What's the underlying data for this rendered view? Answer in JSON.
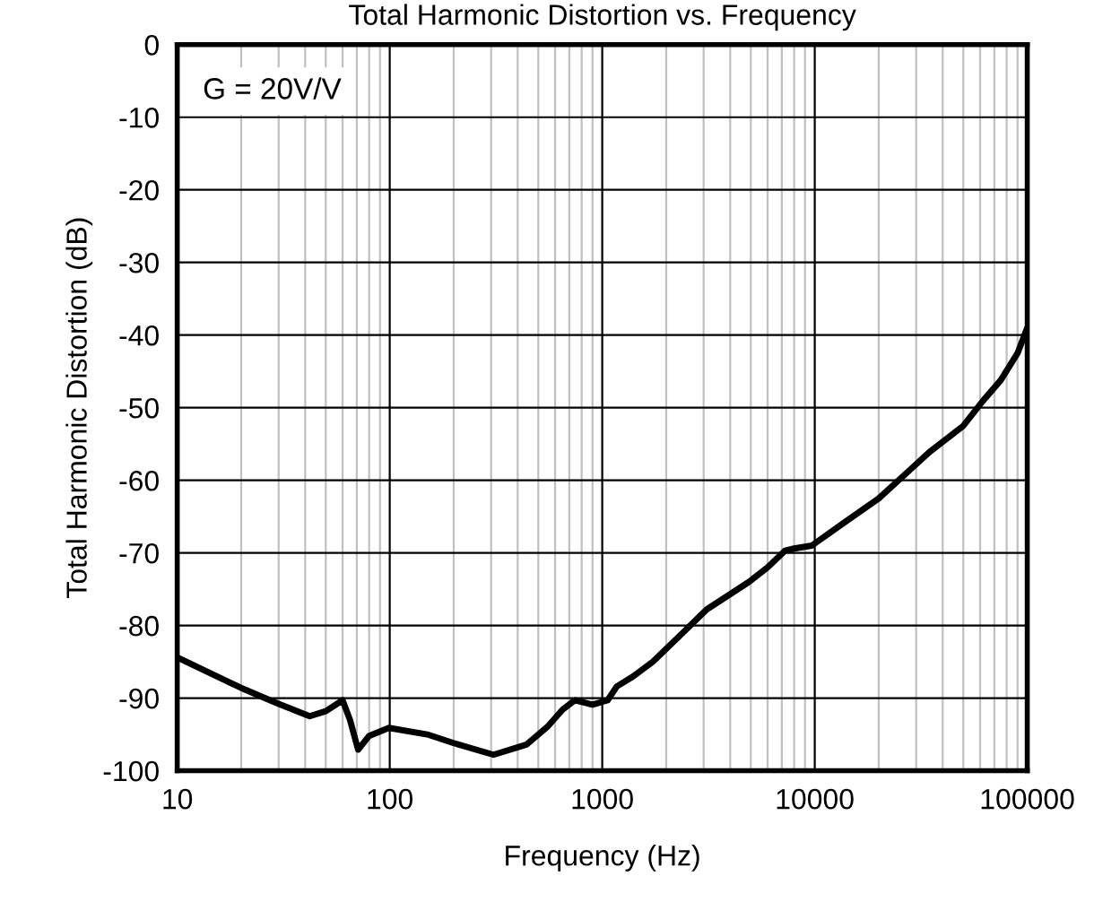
{
  "chart_data": {
    "type": "line",
    "title": "Total Harmonic Distortion vs. Frequency",
    "xlabel": "Frequency (Hz)",
    "ylabel": "Total Harmonic Distortion (dB)",
    "annotations": [
      "G = 20V/V"
    ],
    "log": "x",
    "grid": true,
    "xlim": [
      10,
      100000
    ],
    "xticks": [
      10,
      100,
      1000,
      10000,
      100000
    ],
    "ylim": [
      -100,
      0
    ],
    "yticks": [
      -100,
      -90,
      -80,
      -70,
      -60,
      -50,
      -40,
      -30,
      -20,
      -10,
      0
    ],
    "line_style": "solid",
    "marker": "none",
    "series": [
      {
        "color": "#000000",
        "x": [
          10,
          20,
          30,
          42,
          50,
          60,
          65,
          71,
          80,
          99,
          150,
          200,
          308,
          440,
          550,
          650,
          742,
          900,
          1060,
          1170,
          1400,
          1730,
          2300,
          3100,
          4900,
          6000,
          7240,
          8000,
          9680,
          13800,
          20000,
          34400,
          50000,
          61700,
          75100,
          90000,
          100000
        ],
        "values": [
          -84.4,
          -88.6,
          -90.8,
          -92.5,
          -91.8,
          -90.3,
          -93,
          -97.1,
          -95.2,
          -94.1,
          -95,
          -96.2,
          -97.8,
          -96.4,
          -94,
          -91.6,
          -90.3,
          -90.9,
          -90.3,
          -88.4,
          -87,
          -85,
          -81.5,
          -77.8,
          -74,
          -72,
          -69.7,
          -69.4,
          -69,
          -65.8,
          -62.5,
          -56.2,
          -52.5,
          -49.1,
          -46.2,
          -42.5,
          -39
        ]
      }
    ]
  }
}
